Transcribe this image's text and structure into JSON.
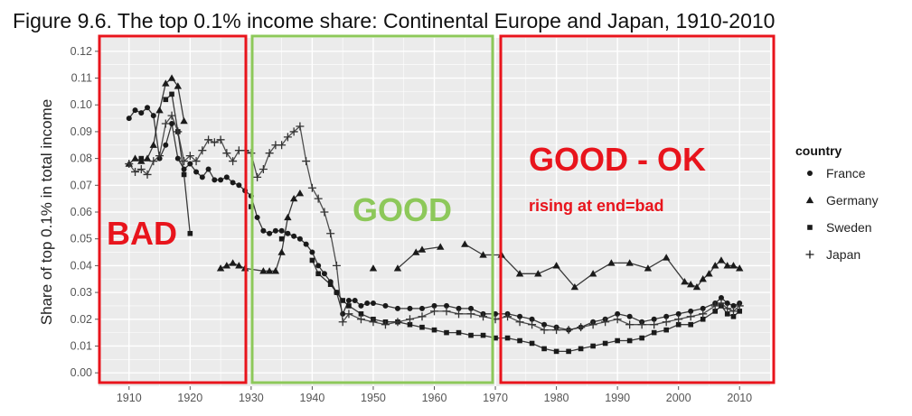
{
  "chart_data": {
    "type": "line",
    "title": "Figure 9.6. The top 0.1% income share: Continental Europe and Japan, 1910-2010",
    "xlabel": "",
    "ylabel": "Share of top 0.1% in total income",
    "xlim": [
      1905,
      2015
    ],
    "ylim": [
      -0.005,
      0.125
    ],
    "x_ticks": [
      1910,
      1920,
      1930,
      1940,
      1950,
      1960,
      1970,
      1980,
      1990,
      2000,
      2010
    ],
    "y_ticks": [
      "0.00",
      "0.01",
      "0.02",
      "0.03",
      "0.04",
      "0.05",
      "0.06",
      "0.07",
      "0.08",
      "0.09",
      "0.10",
      "0.11",
      "0.12"
    ],
    "grid": true,
    "legend_title": "country",
    "legend_position": "right",
    "series": [
      {
        "name": "France",
        "marker": "circle",
        "points": [
          [
            1910,
            0.095
          ],
          [
            1911,
            0.098
          ],
          [
            1912,
            0.097
          ],
          [
            1913,
            0.099
          ],
          [
            1914,
            0.096
          ],
          [
            1915,
            0.08
          ],
          [
            1916,
            0.085
          ],
          [
            1917,
            0.093
          ],
          [
            1918,
            0.08
          ],
          [
            1919,
            0.076
          ],
          [
            1920,
            0.078
          ],
          [
            1921,
            0.075
          ],
          [
            1922,
            0.073
          ],
          [
            1923,
            0.076
          ],
          [
            1924,
            0.072
          ],
          [
            1925,
            0.072
          ],
          [
            1926,
            0.073
          ],
          [
            1927,
            0.071
          ],
          [
            1928,
            0.07
          ],
          [
            1929,
            0.068
          ],
          [
            1930,
            0.066
          ],
          [
            1931,
            0.058
          ],
          [
            1932,
            0.053
          ],
          [
            1933,
            0.052
          ],
          [
            1934,
            0.053
          ],
          [
            1935,
            0.053
          ],
          [
            1936,
            0.052
          ],
          [
            1937,
            0.051
          ],
          [
            1938,
            0.05
          ],
          [
            1939,
            0.048
          ],
          [
            1940,
            0.045
          ],
          [
            1941,
            0.04
          ],
          [
            1942,
            0.037
          ],
          [
            1943,
            0.034
          ],
          [
            1944,
            0.03
          ],
          [
            1945,
            0.022
          ],
          [
            1946,
            0.027
          ],
          [
            1947,
            0.027
          ],
          [
            1948,
            0.025
          ],
          [
            1949,
            0.026
          ],
          [
            1950,
            0.026
          ],
          [
            1952,
            0.025
          ],
          [
            1954,
            0.024
          ],
          [
            1956,
            0.024
          ],
          [
            1958,
            0.024
          ],
          [
            1960,
            0.025
          ],
          [
            1962,
            0.025
          ],
          [
            1964,
            0.024
          ],
          [
            1966,
            0.024
          ],
          [
            1968,
            0.022
          ],
          [
            1970,
            0.022
          ],
          [
            1972,
            0.022
          ],
          [
            1974,
            0.021
          ],
          [
            1976,
            0.02
          ],
          [
            1978,
            0.018
          ],
          [
            1980,
            0.017
          ],
          [
            1982,
            0.016
          ],
          [
            1984,
            0.017
          ],
          [
            1986,
            0.019
          ],
          [
            1988,
            0.02
          ],
          [
            1990,
            0.022
          ],
          [
            1992,
            0.021
          ],
          [
            1994,
            0.019
          ],
          [
            1996,
            0.02
          ],
          [
            1998,
            0.021
          ],
          [
            2000,
            0.022
          ],
          [
            2002,
            0.023
          ],
          [
            2004,
            0.024
          ],
          [
            2006,
            0.026
          ],
          [
            2007,
            0.028
          ],
          [
            2008,
            0.026
          ],
          [
            2009,
            0.025
          ],
          [
            2010,
            0.026
          ]
        ]
      },
      {
        "name": "Germany",
        "marker": "triangle",
        "points": [
          [
            1910,
            0.078
          ],
          [
            1911,
            0.08
          ],
          [
            1912,
            0.079
          ],
          [
            1913,
            0.08
          ],
          [
            1914,
            0.085
          ],
          [
            1915,
            0.098
          ],
          [
            1916,
            0.108
          ],
          [
            1917,
            0.11
          ],
          [
            1918,
            0.107
          ],
          [
            1919,
            0.094
          ],
          [
            1925,
            0.039
          ],
          [
            1926,
            0.04
          ],
          [
            1927,
            0.041
          ],
          [
            1928,
            0.04
          ],
          [
            1929,
            0.039
          ],
          [
            1932,
            0.038
          ],
          [
            1933,
            0.038
          ],
          [
            1934,
            0.038
          ],
          [
            1935,
            0.045
          ],
          [
            1936,
            0.058
          ],
          [
            1937,
            0.065
          ],
          [
            1938,
            0.067
          ],
          [
            1950,
            0.039
          ],
          [
            1954,
            0.039
          ],
          [
            1957,
            0.045
          ],
          [
            1958,
            0.046
          ],
          [
            1961,
            0.047
          ],
          [
            1965,
            0.048
          ],
          [
            1968,
            0.044
          ],
          [
            1971,
            0.044
          ],
          [
            1974,
            0.037
          ],
          [
            1977,
            0.037
          ],
          [
            1980,
            0.04
          ],
          [
            1983,
            0.032
          ],
          [
            1986,
            0.037
          ],
          [
            1989,
            0.041
          ],
          [
            1992,
            0.041
          ],
          [
            1995,
            0.039
          ],
          [
            1998,
            0.043
          ],
          [
            2001,
            0.034
          ],
          [
            2002,
            0.033
          ],
          [
            2003,
            0.032
          ],
          [
            2004,
            0.035
          ],
          [
            2005,
            0.037
          ],
          [
            2006,
            0.04
          ],
          [
            2007,
            0.042
          ],
          [
            2008,
            0.04
          ],
          [
            2009,
            0.04
          ],
          [
            2010,
            0.039
          ]
        ]
      },
      {
        "name": "Sweden",
        "marker": "square",
        "points": [
          [
            1912,
            0.08
          ],
          [
            1916,
            0.102
          ],
          [
            1917,
            0.104
          ],
          [
            1918,
            0.09
          ],
          [
            1919,
            0.074
          ],
          [
            1920,
            0.052
          ],
          [
            1930,
            0.062
          ],
          [
            1935,
            0.05
          ],
          [
            1940,
            0.042
          ],
          [
            1941,
            0.037
          ],
          [
            1943,
            0.033
          ],
          [
            1944,
            0.03
          ],
          [
            1945,
            0.027
          ],
          [
            1946,
            0.025
          ],
          [
            1948,
            0.022
          ],
          [
            1950,
            0.02
          ],
          [
            1952,
            0.019
          ],
          [
            1954,
            0.019
          ],
          [
            1956,
            0.018
          ],
          [
            1958,
            0.017
          ],
          [
            1960,
            0.016
          ],
          [
            1962,
            0.015
          ],
          [
            1964,
            0.015
          ],
          [
            1966,
            0.014
          ],
          [
            1968,
            0.014
          ],
          [
            1970,
            0.013
          ],
          [
            1972,
            0.013
          ],
          [
            1974,
            0.012
          ],
          [
            1976,
            0.011
          ],
          [
            1978,
            0.009
          ],
          [
            1980,
            0.008
          ],
          [
            1982,
            0.008
          ],
          [
            1984,
            0.009
          ],
          [
            1986,
            0.01
          ],
          [
            1988,
            0.011
          ],
          [
            1990,
            0.012
          ],
          [
            1992,
            0.012
          ],
          [
            1994,
            0.013
          ],
          [
            1996,
            0.015
          ],
          [
            1998,
            0.016
          ],
          [
            2000,
            0.018
          ],
          [
            2002,
            0.018
          ],
          [
            2004,
            0.02
          ],
          [
            2006,
            0.023
          ],
          [
            2007,
            0.025
          ],
          [
            2008,
            0.022
          ],
          [
            2009,
            0.021
          ],
          [
            2010,
            0.023
          ]
        ]
      },
      {
        "name": "Japan",
        "marker": "plus",
        "points": [
          [
            1910,
            0.078
          ],
          [
            1911,
            0.075
          ],
          [
            1912,
            0.076
          ],
          [
            1913,
            0.074
          ],
          [
            1914,
            0.079
          ],
          [
            1915,
            0.081
          ],
          [
            1916,
            0.093
          ],
          [
            1917,
            0.096
          ],
          [
            1918,
            0.09
          ],
          [
            1919,
            0.079
          ],
          [
            1920,
            0.081
          ],
          [
            1921,
            0.079
          ],
          [
            1922,
            0.083
          ],
          [
            1923,
            0.087
          ],
          [
            1924,
            0.086
          ],
          [
            1925,
            0.087
          ],
          [
            1926,
            0.082
          ],
          [
            1927,
            0.079
          ],
          [
            1928,
            0.083
          ],
          [
            1929,
            0.083
          ],
          [
            1930,
            0.082
          ],
          [
            1931,
            0.073
          ],
          [
            1932,
            0.076
          ],
          [
            1933,
            0.082
          ],
          [
            1934,
            0.085
          ],
          [
            1935,
            0.085
          ],
          [
            1936,
            0.088
          ],
          [
            1937,
            0.09
          ],
          [
            1938,
            0.092
          ],
          [
            1939,
            0.079
          ],
          [
            1940,
            0.069
          ],
          [
            1941,
            0.065
          ],
          [
            1942,
            0.06
          ],
          [
            1943,
            0.052
          ],
          [
            1944,
            0.04
          ],
          [
            1945,
            0.019
          ],
          [
            1946,
            0.022
          ],
          [
            1948,
            0.02
          ],
          [
            1950,
            0.019
          ],
          [
            1952,
            0.018
          ],
          [
            1954,
            0.019
          ],
          [
            1956,
            0.02
          ],
          [
            1958,
            0.021
          ],
          [
            1960,
            0.023
          ],
          [
            1962,
            0.023
          ],
          [
            1964,
            0.022
          ],
          [
            1966,
            0.022
          ],
          [
            1968,
            0.021
          ],
          [
            1970,
            0.02
          ],
          [
            1972,
            0.021
          ],
          [
            1974,
            0.019
          ],
          [
            1976,
            0.018
          ],
          [
            1978,
            0.016
          ],
          [
            1980,
            0.016
          ],
          [
            1982,
            0.016
          ],
          [
            1984,
            0.017
          ],
          [
            1986,
            0.018
          ],
          [
            1988,
            0.019
          ],
          [
            1990,
            0.02
          ],
          [
            1992,
            0.018
          ],
          [
            1994,
            0.018
          ],
          [
            1996,
            0.018
          ],
          [
            1998,
            0.019
          ],
          [
            2000,
            0.02
          ],
          [
            2002,
            0.021
          ],
          [
            2004,
            0.022
          ],
          [
            2006,
            0.025
          ],
          [
            2007,
            0.026
          ],
          [
            2008,
            0.024
          ],
          [
            2009,
            0.023
          ],
          [
            2010,
            0.025
          ]
        ]
      }
    ]
  },
  "annotations": {
    "bad": "BAD",
    "good": "GOOD",
    "good_ok": "GOOD - OK",
    "rising_note": "rising  at end=bad",
    "colors": {
      "red": "#e8141c",
      "green": "#8dc85a"
    }
  },
  "colors": {
    "panel_background": "#ebebeb",
    "gridline": "#ffffff",
    "series_color": "#1a1a1a",
    "japan_color": "#333333"
  }
}
